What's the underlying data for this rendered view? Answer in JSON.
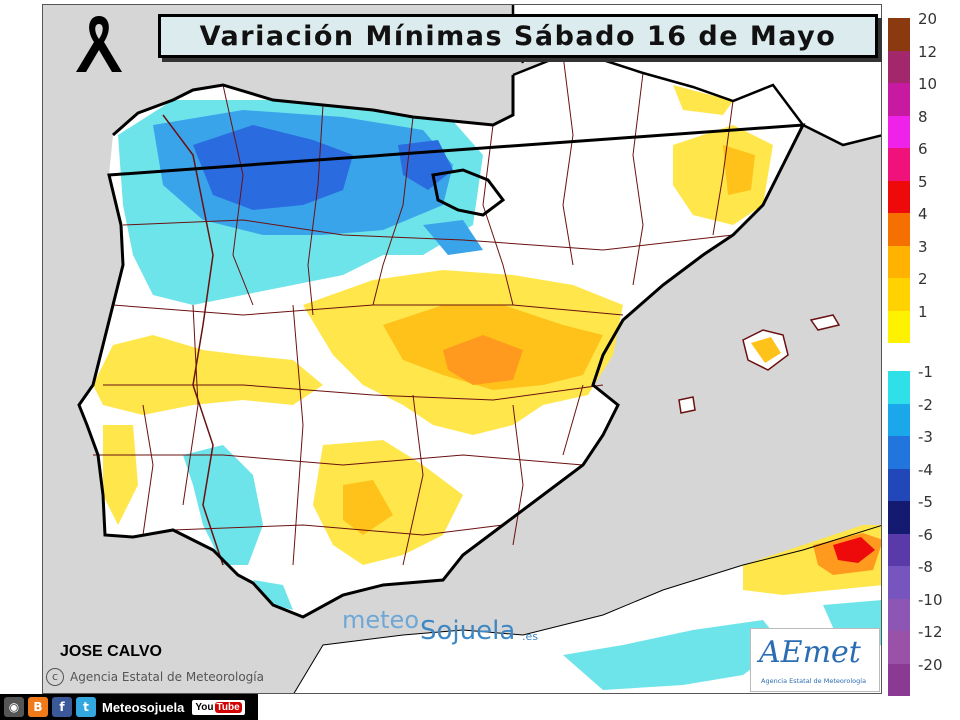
{
  "title": "Variación Mínimas Sábado 16 de Mayo",
  "author": "JOSE CALVO",
  "agency_credit": "Agencia Estatal de Meteorología",
  "watermark": {
    "part1": "meteo",
    "part2": "Sojuela",
    "part3": ".es"
  },
  "aemet_logo": {
    "name": "AEmet",
    "subtitle": "Agencia Estatal de Meteorología"
  },
  "social": {
    "handle": "Meteosojuela",
    "youtube_label": "You",
    "youtube_tube": "Tube"
  },
  "legend": {
    "positive": [
      {
        "label": "20",
        "color": "#8b3a0f"
      },
      {
        "label": "12",
        "color": "#a3286b"
      },
      {
        "label": "10",
        "color": "#c81aa0"
      },
      {
        "label": "8",
        "color": "#ee22e8"
      },
      {
        "label": "6",
        "color": "#f0127a"
      },
      {
        "label": "5",
        "color": "#ee0a0a"
      },
      {
        "label": "4",
        "color": "#f57000"
      },
      {
        "label": "3",
        "color": "#ffb300"
      },
      {
        "label": "2",
        "color": "#ffd200"
      },
      {
        "label": "1",
        "color": "#fff200"
      }
    ],
    "negative": [
      {
        "label": "-1",
        "color": "#2fe0e8"
      },
      {
        "label": "-2",
        "color": "#1aa8ea"
      },
      {
        "label": "-3",
        "color": "#2275dc"
      },
      {
        "label": "-4",
        "color": "#2247b8"
      },
      {
        "label": "-5",
        "color": "#131a70"
      },
      {
        "label": "-6",
        "color": "#5a3aa8"
      },
      {
        "label": "-8",
        "color": "#7755be"
      },
      {
        "label": "-10",
        "color": "#8d55b4"
      },
      {
        "label": "-12",
        "color": "#9a52a8"
      },
      {
        "label": "-20",
        "color": "#8a3a93"
      }
    ]
  },
  "colors": {
    "sea": "#d6d6d6",
    "land": "#ffffff",
    "cold_light": "#6ce4ea",
    "cold_mid": "#3aa4ea",
    "cold_dark": "#2a6be0",
    "warm_light": "#ffe64a",
    "warm_mid": "#ffc21a",
    "warm_dark": "#ff9a1e",
    "hot": "#ee0a0a",
    "borders": "#6b1010"
  }
}
